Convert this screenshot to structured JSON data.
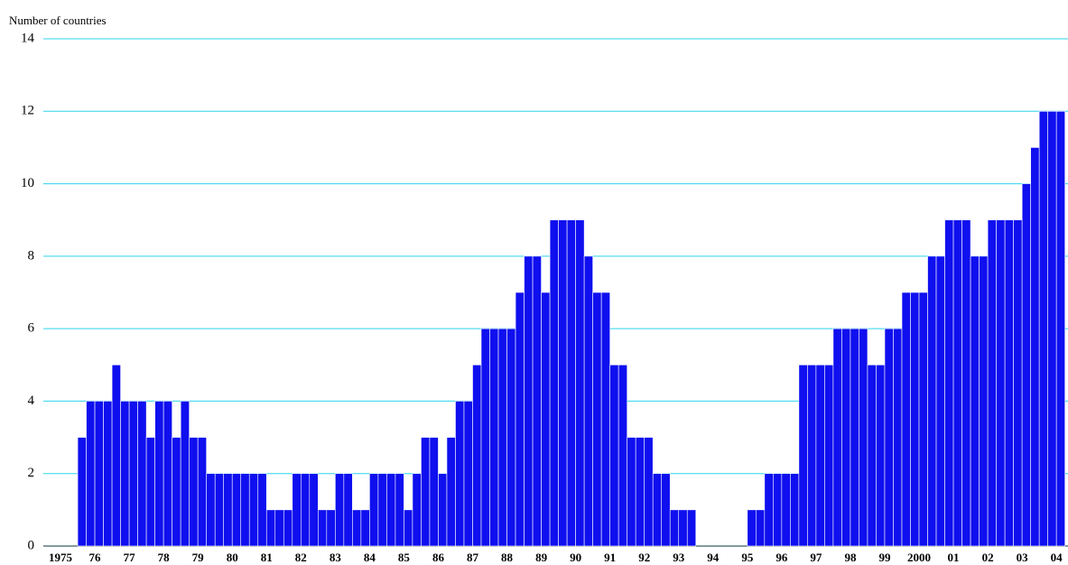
{
  "chart_data": {
    "type": "bar",
    "y_label": "Number of countries",
    "color": "#0f0fef",
    "grid": true,
    "grid_color": "#2fd3ee",
    "ylim": [
      0,
      14
    ],
    "yticks": [
      0,
      2,
      4,
      6,
      8,
      10,
      12,
      14
    ],
    "year_labels": [
      "1975",
      "76",
      "77",
      "78",
      "79",
      "80",
      "81",
      "82",
      "83",
      "84",
      "85",
      "86",
      "87",
      "88",
      "89",
      "90",
      "91",
      "92",
      "93",
      "94",
      "95",
      "96",
      "97",
      "98",
      "99",
      "2000",
      "01",
      "02",
      "03",
      "04"
    ],
    "values": [
      null,
      null,
      null,
      null,
      3,
      4,
      4,
      4,
      5,
      4,
      4,
      4,
      3,
      4,
      4,
      3,
      4,
      3,
      3,
      2,
      2,
      2,
      2,
      2,
      2,
      2,
      1,
      1,
      1,
      2,
      2,
      2,
      1,
      1,
      2,
      2,
      1,
      1,
      2,
      2,
      2,
      2,
      1,
      2,
      3,
      3,
      2,
      3,
      4,
      4,
      5,
      6,
      6,
      6,
      6,
      7,
      8,
      8,
      7,
      9,
      9,
      9,
      9,
      8,
      7,
      7,
      5,
      5,
      3,
      3,
      3,
      2,
      2,
      1,
      1,
      1,
      0,
      0,
      0,
      0,
      0,
      0,
      1,
      1,
      2,
      2,
      2,
      2,
      5,
      5,
      5,
      5,
      6,
      6,
      6,
      6,
      5,
      5,
      6,
      6,
      7,
      7,
      7,
      8,
      8,
      9,
      9,
      9,
      8,
      8,
      9,
      9,
      9,
      9,
      10,
      11,
      12,
      12,
      12
    ]
  }
}
